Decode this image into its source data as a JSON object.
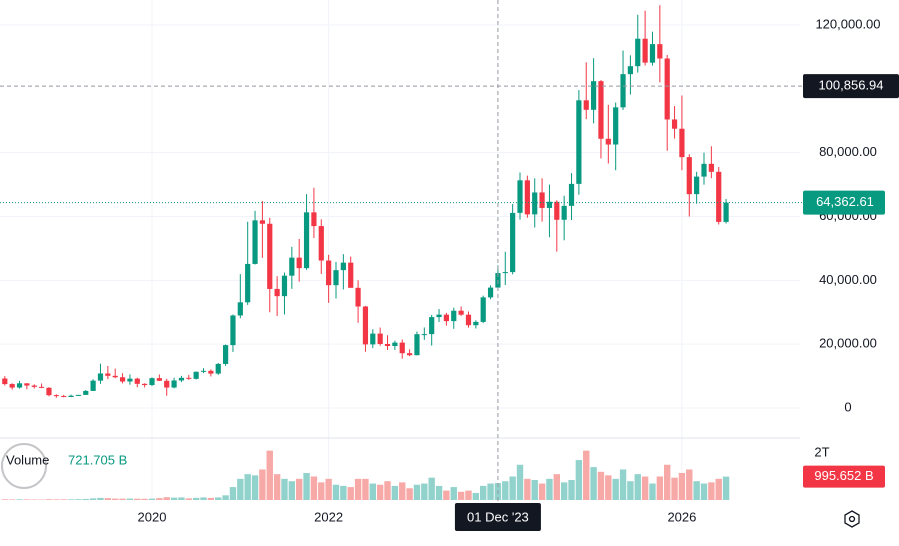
{
  "chart_data": {
    "type": "candlestick",
    "categories": [
      null,
      null,
      null,
      null,
      null,
      null,
      null,
      null,
      null,
      null,
      null,
      null,
      null,
      null,
      null,
      null,
      null,
      null,
      null,
      null,
      "2020",
      null,
      null,
      null,
      null,
      null,
      null,
      null,
      null,
      null,
      null,
      null,
      null,
      null,
      null,
      null,
      null,
      null,
      null,
      null,
      null,
      null,
      null,
      null,
      "2022",
      null,
      null,
      null,
      null,
      null,
      null,
      null,
      null,
      null,
      null,
      null,
      null,
      null,
      null,
      null,
      null,
      null,
      null,
      null,
      null,
      null,
      null,
      "01 Dec '23",
      null,
      null,
      null,
      null,
      null,
      null,
      null,
      null,
      null,
      null,
      null,
      null,
      null,
      null,
      null,
      null,
      null,
      null,
      null,
      null,
      null,
      null,
      null,
      null,
      "2026",
      null,
      null,
      null,
      null,
      null,
      null
    ],
    "open": [
      9245,
      7500,
      6411,
      7735,
      7040,
      6620,
      6318,
      4025,
      3747,
      3450,
      3857,
      4105,
      5350,
      8574,
      10800,
      10080,
      9630,
      8300,
      9200,
      7570,
      7200,
      9350,
      8523,
      6410,
      8625,
      9450,
      9135,
      11340,
      11650,
      10780,
      13800,
      19700,
      28990,
      33110,
      45140,
      58790,
      57720,
      37300,
      35040,
      41460,
      47100,
      43820,
      61300,
      57000,
      46200,
      38480,
      43190,
      45540,
      37650,
      31800,
      19930,
      23300,
      20050,
      19420,
      20490,
      17170,
      16540,
      23130,
      23150,
      28480,
      29250,
      27220,
      30480,
      29230,
      25940,
      26970,
      34660,
      37720,
      42280,
      42580,
      61130,
      71330,
      60670,
      67530,
      62680,
      64620,
      58970,
      63330,
      70220,
      96400,
      93430,
      102400,
      84350,
      82550,
      94200,
      104600,
      107100,
      115700,
      108200,
      114000,
      109500,
      90400,
      87500,
      78600,
      67000,
      72500,
      76500,
      74000,
      58300
    ],
    "high": [
      9990,
      7760,
      8490,
      7760,
      7410,
      7680,
      6550,
      4310,
      4110,
      4200,
      4120,
      5640,
      9000,
      13880,
      13180,
      12320,
      10900,
      10540,
      9500,
      7750,
      9580,
      10500,
      9180,
      9470,
      10070,
      10380,
      11450,
      12480,
      12080,
      14100,
      19900,
      29300,
      41950,
      58350,
      61780,
      64850,
      59600,
      41300,
      42450,
      50500,
      52950,
      67000,
      69000,
      59100,
      47990,
      45800,
      48200,
      47450,
      40020,
      31980,
      24670,
      25200,
      22800,
      21100,
      21480,
      18390,
      23950,
      25250,
      29190,
      31000,
      29820,
      31430,
      31800,
      30230,
      27480,
      35200,
      38430,
      44700,
      48970,
      63900,
      73780,
      72800,
      71950,
      71980,
      70000,
      65100,
      66500,
      73600,
      99600,
      108300,
      109600,
      102750,
      95000,
      95700,
      112000,
      110500,
      123200,
      124500,
      117900,
      126200,
      110600,
      94600,
      97900,
      79500,
      74000,
      80000,
      82000,
      75500,
      65500
    ],
    "low": [
      7050,
      5750,
      6070,
      5880,
      6100,
      6200,
      3650,
      3200,
      3400,
      3380,
      3790,
      4100,
      5330,
      7570,
      9060,
      9330,
      7700,
      7300,
      6500,
      6430,
      6850,
      8450,
      3850,
      6150,
      8110,
      8830,
      8920,
      10930,
      9880,
      10370,
      13200,
      17570,
      28130,
      32290,
      44950,
      47040,
      30000,
      28800,
      29300,
      37330,
      39600,
      43300,
      53250,
      42000,
      32950,
      34320,
      37150,
      37700,
      26700,
      17600,
      18780,
      19520,
      18150,
      18190,
      15480,
      16260,
      16500,
      21350,
      19550,
      26940,
      25810,
      24800,
      28860,
      25170,
      24900,
      26560,
      34100,
      37620,
      38550,
      41880,
      59000,
      59600,
      56550,
      58400,
      53500,
      49000,
      52550,
      58900,
      66800,
      90500,
      89200,
      78200,
      76600,
      74500,
      93400,
      98200,
      105100,
      107300,
      107300,
      102000,
      80600,
      84400,
      74500,
      60000,
      64000,
      70000,
      72000,
      57500,
      57800
    ],
    "close": [
      7494,
      6404,
      7730,
      7032,
      6626,
      6318,
      4015,
      3743,
      3457,
      3854,
      4105,
      5350,
      8574,
      10817,
      10085,
      9630,
      8293,
      9199,
      7569,
      7193,
      9350,
      8523,
      6410,
      8625,
      9450,
      9135,
      11340,
      11650,
      10780,
      13800,
      19700,
      28990,
      33110,
      45140,
      58790,
      57720,
      37300,
      35040,
      41460,
      47100,
      43820,
      61300,
      57000,
      46200,
      38480,
      43190,
      45540,
      37650,
      31800,
      19930,
      23300,
      20050,
      19420,
      20490,
      17170,
      16540,
      23130,
      23150,
      28480,
      29250,
      27220,
      30480,
      29230,
      25940,
      26970,
      34660,
      37720,
      42280,
      42580,
      61130,
      71330,
      60670,
      67530,
      62680,
      64620,
      58970,
      63330,
      70220,
      96400,
      93430,
      102400,
      84350,
      82550,
      94200,
      104600,
      107100,
      115700,
      108200,
      114000,
      109500,
      90400,
      87500,
      78600,
      67000,
      72500,
      76500,
      74000,
      58300,
      64362.61
    ],
    "colors": {
      "up": "#089981",
      "down": "#f23645",
      "volume_up": "#92d2cc",
      "volume_down": "#f7a9a7"
    },
    "ylim": [
      -9400,
      127830
    ],
    "yticks": [
      {
        "value": 0,
        "label": "0"
      },
      {
        "value": 20000,
        "label": "20,000.00"
      },
      {
        "value": 40000,
        "label": "40,000.00"
      },
      {
        "value": 60000,
        "label": "60,000.00"
      },
      {
        "value": 80000,
        "label": "80,000.00"
      },
      {
        "value": 120000,
        "label": "120,000.00"
      }
    ],
    "last_price": {
      "value": 64362.61,
      "label": "64,362.61"
    },
    "crosshair": {
      "category": "01 Dec '23",
      "price": {
        "value": 100856.94,
        "label": "100,856.94"
      }
    },
    "volume": {
      "name": "Volume",
      "values": [
        30000000000.0,
        25000000000.0,
        30000000000.0,
        28000000000.0,
        22000000000.0,
        20000000000.0,
        35000000000.0,
        30000000000.0,
        30000000000.0,
        30000000000.0,
        35000000000.0,
        45000000000.0,
        70000000000.0,
        90000000000.0,
        80000000000.0,
        60000000000.0,
        55000000000.0,
        60000000000.0,
        55000000000.0,
        50000000000.0,
        60000000000.0,
        80000000000.0,
        120000000000.0,
        100000000000.0,
        110000000000.0,
        70000000000.0,
        90000000000.0,
        110000000000.0,
        90000000000.0,
        110000000000.0,
        200000000000.0,
        550000000000.0,
        900000000000.0,
        1100000000000.0,
        1050000000000.0,
        1300000000000.0,
        2100000000000.0,
        1100000000000.0,
        900000000000.0,
        800000000000.0,
        900000000000.0,
        1150000000000.0,
        1000000000000.0,
        750000000000.0,
        900000000000.0,
        650000000000.0,
        600000000000.0,
        550000000000.0,
        900000000000.0,
        900000000000.0,
        700000000000.0,
        650000000000.0,
        800000000000.0,
        600000000000.0,
        750000000000.0,
        500000000000.0,
        650000000000.0,
        700000000000.0,
        950000000000.0,
        600000000000.0,
        400000000000.0,
        550000000000.0,
        350000000000.0,
        400000000000.0,
        300000000000.0,
        600000000000.0,
        700000000000.0,
        721705000000.0,
        800000000000.0,
        1000000000000.0,
        1500000000000.0,
        900000000000.0,
        850000000000.0,
        700000000000.0,
        900000000000.0,
        1100000000000.0,
        750000000000.0,
        850000000000.0,
        1700000000000.0,
        2100000000000.0,
        1400000000000.0,
        1200000000000.0,
        1050000000000.0,
        900000000000.0,
        1300000000000.0,
        800000000000.0,
        1100000000000.0,
        1000000000000.0,
        700000000000.0,
        1000000000000.0,
        1500000000000.0,
        950000000000.0,
        1150000000000.0,
        1300000000000.0,
        800000000000.0,
        700000000000.0,
        750000000000.0,
        900000000000.0,
        995652000000.0
      ],
      "value_labels": [
        null,
        null,
        null,
        null,
        null,
        null,
        null,
        null,
        null,
        null,
        null,
        null,
        null,
        null,
        null,
        null,
        null,
        null,
        null,
        null,
        null,
        null,
        null,
        null,
        null,
        null,
        null,
        null,
        null,
        null,
        null,
        null,
        null,
        null,
        null,
        null,
        null,
        null,
        null,
        null,
        null,
        null,
        null,
        null,
        null,
        null,
        null,
        null,
        null,
        null,
        null,
        null,
        null,
        null,
        null,
        null,
        null,
        null,
        null,
        null,
        null,
        null,
        null,
        null,
        null,
        null,
        null,
        "721.705 B",
        null,
        null,
        null,
        null,
        null,
        null,
        null,
        null,
        null,
        null,
        null,
        null,
        null,
        null,
        null,
        null,
        null,
        null,
        null,
        null,
        null,
        null,
        null,
        null,
        null,
        null,
        null,
        null,
        null,
        null,
        "995.652 B"
      ],
      "last_label_color": "#f23645",
      "ylim": [
        0,
        2553000000000
      ],
      "yticks": [
        {
          "value": 2000000000000,
          "label": "2T"
        }
      ]
    }
  }
}
